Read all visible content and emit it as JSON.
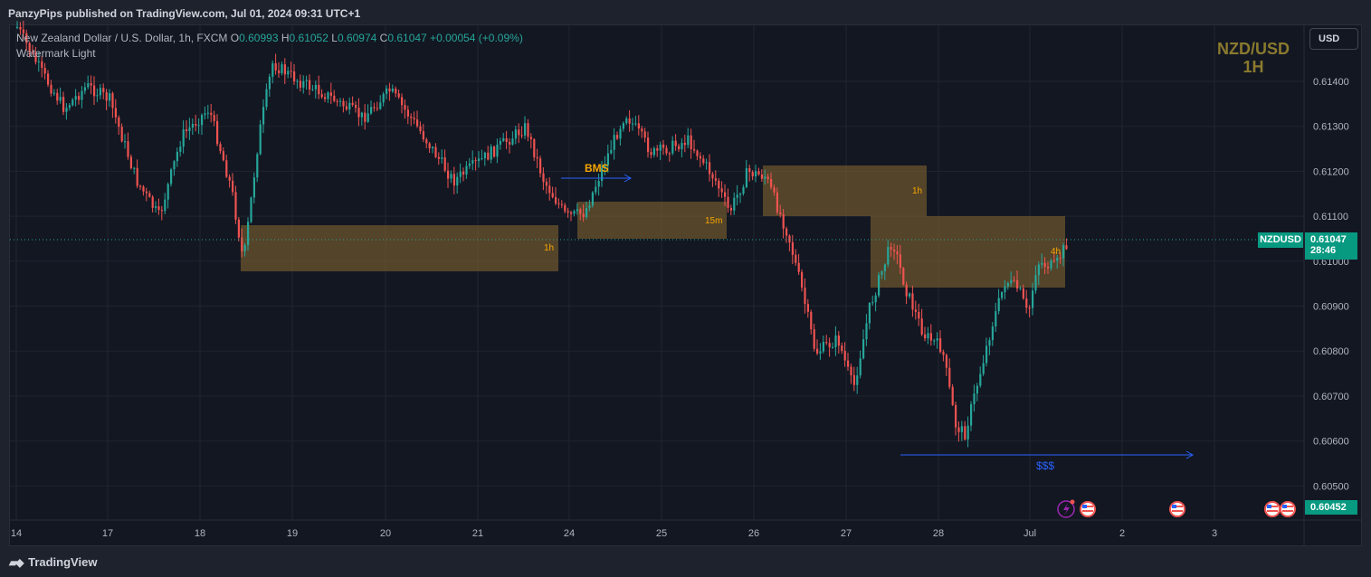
{
  "header": {
    "published_text": "PanzyPips published on TradingView.com, Jul 01, 2024 09:31 UTC+1"
  },
  "legend": {
    "symbol_desc": "New Zealand Dollar / U.S. Dollar, 1h, FXCM",
    "o_label": "O",
    "o_value": "0.60993",
    "h_label": "H",
    "h_value": "0.61052",
    "l_label": "L",
    "l_value": "0.60974",
    "c_label": "C",
    "c_value": "0.61047",
    "change": "+0.00054 (+0.09%)",
    "indicator": "Watermark Light"
  },
  "watermark": {
    "line1": "NZD/USD",
    "line2": "1H"
  },
  "currency_button": "USD",
  "price_axis": {
    "ticks": [
      "0.61400",
      "0.61300",
      "0.61200",
      "0.61100",
      "0.61000",
      "0.60900",
      "0.60800",
      "0.60700",
      "0.60600",
      "0.60500"
    ],
    "last_price": "0.61047",
    "countdown": "28:46",
    "symbol_tag": "NZDUSD",
    "low_tag": "0.60452"
  },
  "time_axis": {
    "labels": [
      "14",
      "17",
      "18",
      "19",
      "20",
      "21",
      "24",
      "25",
      "26",
      "27",
      "28",
      "Jul",
      "2",
      "3"
    ]
  },
  "annotations": {
    "bms": "BMS",
    "zone_1h_left": "1h",
    "zone_15m": "15m",
    "zone_1h_right": "1h",
    "zone_4h": "4h",
    "liquidity": "$$$"
  },
  "footer": {
    "brand": "TradingView"
  },
  "colors": {
    "up": "#26a69a",
    "down": "#ef5350",
    "zone": "#8a6a30",
    "accent_blue": "#2962ff",
    "watermark": "#8a7a2e"
  },
  "icons": [
    "tradingview-logo-icon",
    "lightning-event-icon",
    "us-flag-icon"
  ]
}
